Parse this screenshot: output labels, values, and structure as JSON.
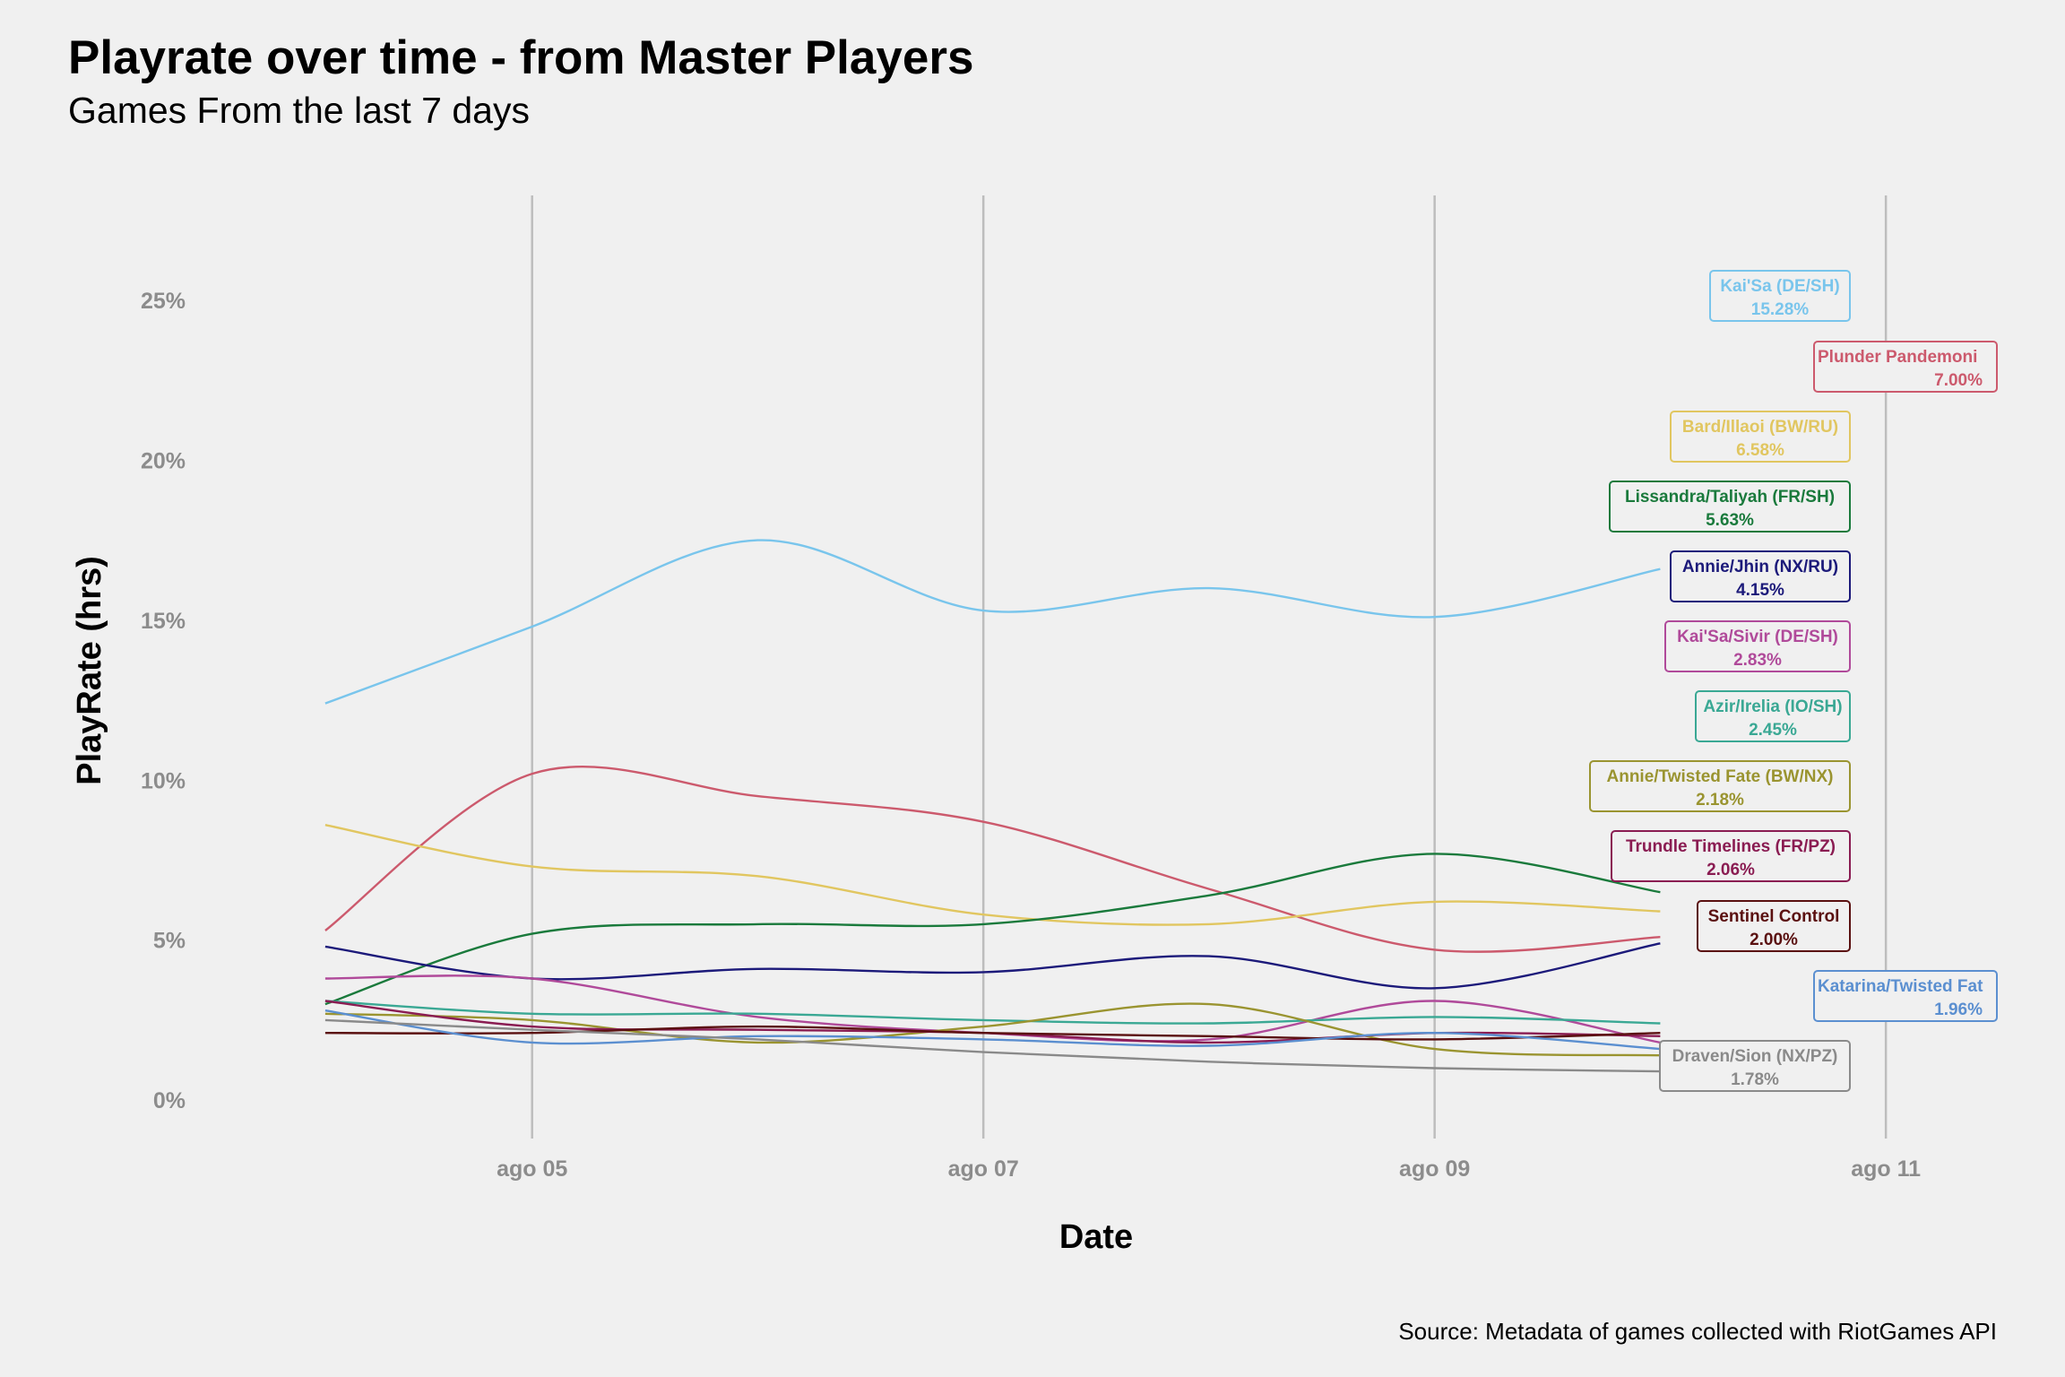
{
  "chart_data": {
    "type": "line",
    "title": "Playrate over time - from Master Players",
    "subtitle": "Games From the last 7 days",
    "xlabel": "Date",
    "ylabel": "PlayRate (hrs)",
    "caption": "Source: Metadata of games collected with RiotGames API",
    "x_ticks": [
      "ago 05",
      "ago 07",
      "ago 09",
      "ago 11"
    ],
    "y_ticks": [
      "0%",
      "5%",
      "10%",
      "15%",
      "20%",
      "25%"
    ],
    "xlim": [
      "2021-08-03 20:00",
      "2021-08-11 12:00"
    ],
    "ylim": [
      -0.012,
      0.285
    ],
    "grid": "vertical major lines only",
    "legend": "none (labels at line ends, right side)",
    "x": [
      "2021-08-04 02:00",
      "2021-08-05 00:00",
      "2021-08-06 00:00",
      "2021-08-07 00:00",
      "2021-08-08 00:00",
      "2021-08-09 00:00",
      "2021-08-10 00:00"
    ],
    "series": [
      {
        "name": "Kai'Sa (DE/SH)",
        "label": "15.28%",
        "color": "#79c5ec",
        "values": [
          0.124,
          0.148,
          0.175,
          0.153,
          0.16,
          0.151,
          0.166
        ]
      },
      {
        "name": "Plunder Pandemonium",
        "label": "7.00%",
        "color": "#cc5a6d",
        "values": [
          0.053,
          0.102,
          0.095,
          0.087,
          0.066,
          0.047,
          0.051
        ]
      },
      {
        "name": "Bard/Illaoi (BW/RU)",
        "label": "6.58%",
        "color": "#e1c660",
        "values": [
          0.086,
          0.073,
          0.07,
          0.058,
          0.055,
          0.062,
          0.059
        ]
      },
      {
        "name": "Lissandra/Taliyah (FR/SH)",
        "label": "5.63%",
        "color": "#1a7a3c",
        "values": [
          0.03,
          0.052,
          0.055,
          0.055,
          0.064,
          0.077,
          0.065
        ]
      },
      {
        "name": "Annie/Jhin (NX/RU)",
        "label": "4.15%",
        "color": "#1c1a7a",
        "values": [
          0.048,
          0.038,
          0.041,
          0.04,
          0.045,
          0.035,
          0.049
        ]
      },
      {
        "name": "Kai'Sa/Sivir (DE/SH)",
        "label": "2.83%",
        "color": "#b04a9a",
        "values": [
          0.038,
          0.038,
          0.026,
          0.021,
          0.019,
          0.031,
          0.018
        ]
      },
      {
        "name": "Azir/Irelia (IO/SH)",
        "label": "2.45%",
        "color": "#3aa894",
        "values": [
          0.031,
          0.027,
          0.027,
          0.025,
          0.024,
          0.026,
          0.024
        ]
      },
      {
        "name": "Annie/Twisted Fate (BW/NX)",
        "label": "2.18%",
        "color": "#9a9430",
        "values": [
          0.027,
          0.025,
          0.018,
          0.023,
          0.03,
          0.016,
          0.014
        ]
      },
      {
        "name": "Trundle Timelines (FR/PZ)",
        "label": "2.06%",
        "color": "#8a1c52",
        "values": [
          0.031,
          0.023,
          0.022,
          0.021,
          0.018,
          0.021,
          0.02
        ]
      },
      {
        "name": "Sentinel Control",
        "label": "2.00%",
        "color": "#5a1010",
        "values": [
          0.021,
          0.021,
          0.023,
          0.021,
          0.02,
          0.019,
          0.021
        ]
      },
      {
        "name": "Katarina/Twisted Fate",
        "label": "1.96%",
        "color": "#5b8fd0",
        "values": [
          0.028,
          0.018,
          0.02,
          0.019,
          0.017,
          0.021,
          0.016
        ]
      },
      {
        "name": "Draven/Sion (NX/PZ)",
        "label": "1.78%",
        "color": "#8a8a8a",
        "values": [
          0.025,
          0.022,
          0.019,
          0.015,
          0.012,
          0.01,
          0.009
        ]
      }
    ],
    "end_labels": [
      {
        "series": "Kai'Sa (DE/SH)",
        "text": "Kai'Sa (DE/SH)",
        "pct": "15.28%"
      },
      {
        "series": "Plunder Pandemonium",
        "text": "Plunder Pandemoni",
        "pct": "7.00%"
      },
      {
        "series": "Bard/Illaoi (BW/RU)",
        "text": "Bard/Illaoi (BW/RU)",
        "pct": "6.58%"
      },
      {
        "series": "Lissandra/Taliyah (FR/SH)",
        "text": "Lissandra/Taliyah (FR/SH)",
        "pct": "5.63%"
      },
      {
        "series": "Annie/Jhin (NX/RU)",
        "text": "Annie/Jhin (NX/RU)",
        "pct": "4.15%"
      },
      {
        "series": "Kai'Sa/Sivir (DE/SH)",
        "text": "Kai'Sa/Sivir (DE/SH)",
        "pct": "2.83%"
      },
      {
        "series": "Azir/Irelia (IO/SH)",
        "text": "Azir/Irelia (IO/SH)",
        "pct": "2.45%"
      },
      {
        "series": "Annie/Twisted Fate (BW/NX)",
        "text": "Annie/Twisted Fate (BW/NX)",
        "pct": "2.18%"
      },
      {
        "series": "Trundle Timelines (FR/PZ)",
        "text": "Trundle Timelines (FR/PZ)",
        "pct": "2.06%"
      },
      {
        "series": "Sentinel Control",
        "text": "Sentinel Control",
        "pct": "2.00%"
      },
      {
        "series": "Katarina/Twisted Fate",
        "text": "Katarina/Twisted Fat",
        "pct": "1.96%"
      },
      {
        "series": "Draven/Sion (NX/PZ)",
        "text": "Draven/Sion (NX/PZ)",
        "pct": "1.78%"
      }
    ]
  }
}
